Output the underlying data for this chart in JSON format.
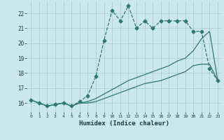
{
  "background_color": "#cce8ec",
  "grid_color": "#aacdd4",
  "line_color": "#2d7a6e",
  "xlabel": "Humidex (Indice chaleur)",
  "ylabel_ticks": [
    16,
    17,
    18,
    19,
    20,
    21,
    22
  ],
  "xlim": [
    -0.5,
    23.5
  ],
  "ylim": [
    15.4,
    22.8
  ],
  "xticks": [
    0,
    1,
    2,
    3,
    4,
    5,
    6,
    7,
    8,
    9,
    10,
    11,
    12,
    13,
    14,
    15,
    16,
    17,
    18,
    19,
    20,
    21,
    22,
    23
  ],
  "series1_x": [
    0,
    1,
    2,
    3,
    4,
    5,
    6,
    7,
    8,
    9,
    10,
    11,
    12,
    13,
    14,
    15,
    16,
    17,
    18,
    19,
    20,
    21,
    22,
    23
  ],
  "series1_y": [
    16.2,
    16.0,
    15.8,
    15.9,
    16.0,
    15.8,
    16.1,
    16.5,
    17.8,
    20.2,
    22.2,
    21.5,
    22.5,
    21.0,
    21.5,
    21.0,
    21.5,
    21.5,
    21.5,
    21.5,
    20.8,
    20.8,
    18.3,
    17.5
  ],
  "series2_x": [
    0,
    1,
    2,
    3,
    4,
    5,
    6,
    7,
    8,
    9,
    10,
    11,
    12,
    13,
    14,
    15,
    16,
    17,
    18,
    19,
    20,
    21,
    22,
    23
  ],
  "series2_y": [
    16.2,
    16.0,
    15.8,
    15.9,
    16.0,
    15.8,
    16.0,
    16.1,
    16.3,
    16.6,
    16.9,
    17.2,
    17.5,
    17.7,
    17.9,
    18.1,
    18.3,
    18.5,
    18.8,
    19.0,
    19.5,
    20.3,
    20.8,
    17.5
  ],
  "series3_x": [
    0,
    1,
    2,
    3,
    4,
    5,
    6,
    7,
    8,
    9,
    10,
    11,
    12,
    13,
    14,
    15,
    16,
    17,
    18,
    19,
    20,
    21,
    22,
    23
  ],
  "series3_y": [
    16.2,
    16.0,
    15.8,
    15.9,
    16.0,
    15.8,
    16.0,
    16.0,
    16.1,
    16.3,
    16.5,
    16.7,
    16.9,
    17.1,
    17.3,
    17.4,
    17.5,
    17.7,
    17.9,
    18.1,
    18.5,
    18.6,
    18.6,
    17.5
  ],
  "markersize": 2.5,
  "linewidth": 0.9
}
